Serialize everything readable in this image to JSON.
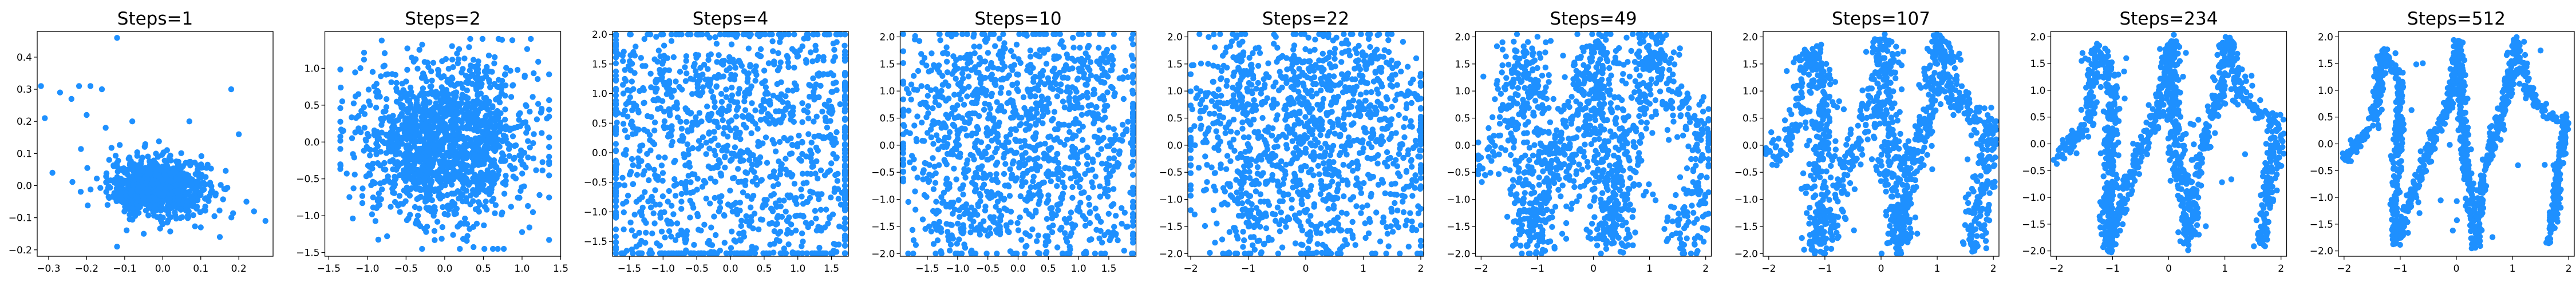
{
  "figure": {
    "point_color": "#1e90ff",
    "background": "#ffffff"
  },
  "chart_data": [
    {
      "type": "scatter",
      "title": "Steps=1",
      "xlim": [
        -0.33,
        0.29
      ],
      "ylim": [
        -0.22,
        0.48
      ],
      "xticks": [
        -0.3,
        -0.2,
        -0.1,
        0.0,
        0.1,
        0.2
      ],
      "xtick_labels": [
        "−0.3",
        "−0.2",
        "−0.1",
        "0.0",
        "0.1",
        "0.2"
      ],
      "yticks": [
        -0.2,
        -0.1,
        0.0,
        0.1,
        0.2,
        0.3,
        0.4
      ],
      "ytick_labels": [
        "−0.2",
        "−0.1",
        "0.0",
        "0.1",
        "0.2",
        "0.3",
        "0.4"
      ],
      "distribution": "central dense cluster near (-0.02, 0.0) with sparse outliers",
      "points": [
        [
          -0.12,
          0.46
        ],
        [
          -0.32,
          0.31
        ],
        [
          -0.31,
          0.21
        ],
        [
          -0.27,
          0.29
        ],
        [
          -0.22,
          0.31
        ],
        [
          -0.19,
          0.31
        ],
        [
          -0.24,
          0.27
        ],
        [
          -0.16,
          0.3
        ],
        [
          0.18,
          0.3
        ],
        [
          -0.29,
          0.04
        ],
        [
          -0.2,
          0.22
        ],
        [
          -0.15,
          0.18
        ],
        [
          -0.08,
          0.2
        ],
        [
          0.07,
          0.2
        ],
        [
          0.2,
          0.16
        ],
        [
          0.24,
          -0.08
        ],
        [
          0.27,
          -0.11
        ],
        [
          0.15,
          -0.16
        ],
        [
          -0.12,
          -0.19
        ],
        [
          -0.05,
          -0.15
        ],
        [
          0.1,
          -0.13
        ],
        [
          0.22,
          -0.05
        ]
      ]
    },
    {
      "type": "scatter",
      "title": "Steps=2",
      "xlim": [
        -1.55,
        1.5
      ],
      "ylim": [
        -1.55,
        1.5
      ],
      "xticks": [
        -1.5,
        -1.0,
        -0.5,
        0.0,
        0.5,
        1.0,
        1.5
      ],
      "xtick_labels": [
        "−1.5",
        "−1.0",
        "−0.5",
        "0.0",
        "0.5",
        "1.0",
        "1.5"
      ],
      "yticks": [
        -1.5,
        -1.0,
        -0.5,
        0.0,
        0.5,
        1.0
      ],
      "ytick_labels": [
        "−1.5",
        "−1.0",
        "−0.5",
        "0.0",
        "0.5",
        "1.0"
      ],
      "distribution": "broad roughly uniform blob over the whole range"
    },
    {
      "type": "scatter",
      "title": "Steps=4",
      "xlim": [
        -1.75,
        1.75
      ],
      "ylim": [
        -1.75,
        2.05
      ],
      "xticks": [
        -1.5,
        -1.0,
        -0.5,
        0.0,
        0.5,
        1.0,
        1.5
      ],
      "xtick_labels": [
        "−1.5",
        "−1.0",
        "−0.5",
        "0.0",
        "0.5",
        "1.0",
        "1.5"
      ],
      "yticks": [
        -1.5,
        -1.0,
        -0.5,
        0.0,
        0.5,
        1.0,
        1.5,
        2.0
      ],
      "ytick_labels": [
        "−1.5",
        "−1.0",
        "−0.5",
        "0.0",
        "0.5",
        "1.0",
        "1.5",
        "2.0"
      ],
      "distribution": "broad blob starting to show wave structure"
    },
    {
      "type": "scatter",
      "title": "Steps=10",
      "xlim": [
        -1.95,
        1.95
      ],
      "ylim": [
        -2.05,
        2.1
      ],
      "xticks": [
        -1.5,
        -1.0,
        -0.5,
        0.0,
        0.5,
        1.0,
        1.5
      ],
      "xtick_labels": [
        "−1.5",
        "−1.0",
        "−0.5",
        "0.0",
        "0.5",
        "1.0",
        "1.5"
      ],
      "yticks": [
        -2.0,
        -1.5,
        -1.0,
        -0.5,
        0.0,
        0.5,
        1.0,
        1.5,
        2.0
      ],
      "ytick_labels": [
        "−2.0",
        "−1.5",
        "−1.0",
        "−0.5",
        "0.0",
        "0.5",
        "1.0",
        "1.5",
        "2.0"
      ],
      "distribution": "noisy scatter concentrating around a zig-zag curve"
    },
    {
      "type": "scatter",
      "title": "Steps=22",
      "xlim": [
        -2.05,
        2.05
      ],
      "ylim": [
        -2.05,
        2.1
      ],
      "xticks": [
        -2,
        -1,
        0,
        1,
        2
      ],
      "xtick_labels": [
        "−2",
        "−1",
        "0",
        "1",
        "2"
      ],
      "yticks": [
        -2.0,
        -1.5,
        -1.0,
        -0.5,
        0.0,
        0.5,
        1.0,
        1.5,
        2.0
      ],
      "ytick_labels": [
        "−2.0",
        "−1.5",
        "−1.0",
        "−0.5",
        "0.0",
        "0.5",
        "1.0",
        "1.5",
        "2.0"
      ],
      "distribution": "zig-zag curve with moderate noise"
    },
    {
      "type": "scatter",
      "title": "Steps=49",
      "xlim": [
        -2.1,
        2.1
      ],
      "ylim": [
        -2.05,
        2.1
      ],
      "xticks": [
        -2,
        -1,
        0,
        1,
        2
      ],
      "xtick_labels": [
        "−2",
        "−1",
        "0",
        "1",
        "2"
      ],
      "yticks": [
        -2.0,
        -1.5,
        -1.0,
        -0.5,
        0.0,
        0.5,
        1.0,
        1.5,
        2.0
      ],
      "ytick_labels": [
        "−2.0",
        "−1.5",
        "−1.0",
        "−0.5",
        "0.0",
        "0.5",
        "1.0",
        "1.5",
        "2.0"
      ],
      "distribution": "clear zig-zag curve with small noise"
    },
    {
      "type": "scatter",
      "title": "Steps=107",
      "xlim": [
        -2.1,
        2.1
      ],
      "ylim": [
        -2.05,
        2.1
      ],
      "xticks": [
        -2,
        -1,
        0,
        1,
        2
      ],
      "xtick_labels": [
        "−2",
        "−1",
        "0",
        "1",
        "2"
      ],
      "yticks": [
        -2.0,
        -1.5,
        -1.0,
        -0.5,
        0.0,
        0.5,
        1.0,
        1.5,
        2.0
      ],
      "ytick_labels": [
        "−2.0",
        "−1.5",
        "−1.0",
        "−0.5",
        "0.0",
        "0.5",
        "1.0",
        "1.5",
        "2.0"
      ],
      "distribution": "zig-zag curve, points tightening"
    },
    {
      "type": "scatter",
      "title": "Steps=234",
      "xlim": [
        -2.1,
        2.1
      ],
      "ylim": [
        -2.1,
        2.1
      ],
      "xticks": [
        -2,
        -1,
        0,
        1,
        2
      ],
      "xtick_labels": [
        "−2",
        "−1",
        "0",
        "1",
        "2"
      ],
      "yticks": [
        -2.0,
        -1.5,
        -1.0,
        -0.5,
        0.0,
        0.5,
        1.0,
        1.5,
        2.0
      ],
      "ytick_labels": [
        "−2.0",
        "−1.5",
        "−1.0",
        "−0.5",
        "0.0",
        "0.5",
        "1.0",
        "1.5",
        "2.0"
      ],
      "distribution": "thin zig-zag curve"
    },
    {
      "type": "scatter",
      "title": "Steps=512",
      "xlim": [
        -2.1,
        2.1
      ],
      "ylim": [
        -2.1,
        2.1
      ],
      "xticks": [
        -2,
        -1,
        0,
        1,
        2
      ],
      "xtick_labels": [
        "−2",
        "−1",
        "0",
        "1",
        "2"
      ],
      "yticks": [
        -2.0,
        -1.5,
        -1.0,
        -0.5,
        0.0,
        0.5,
        1.0,
        1.5,
        2.0
      ],
      "ytick_labels": [
        "−2.0",
        "−1.5",
        "−1.0",
        "−0.5",
        "0.0",
        "0.5",
        "1.0",
        "1.5",
        "2.0"
      ],
      "distribution": "very thin zig-zag curve"
    }
  ]
}
